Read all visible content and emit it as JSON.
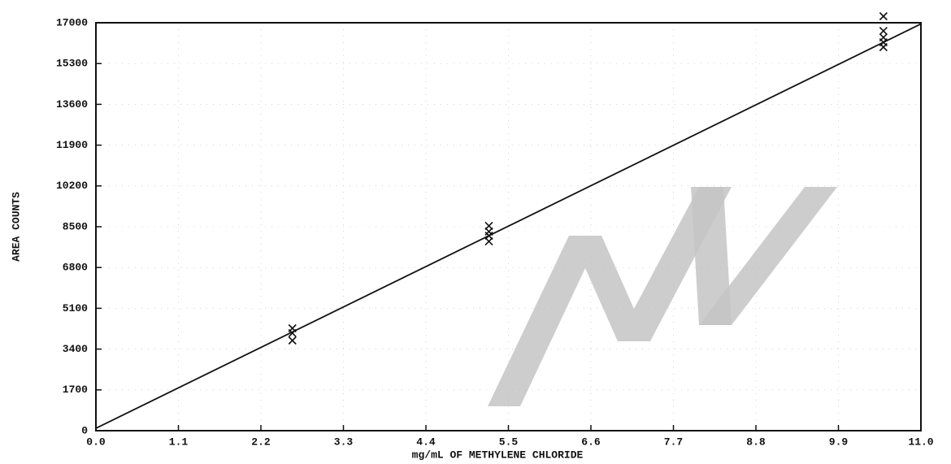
{
  "chart_data": {
    "type": "scatter",
    "x_label": "mg/mL OF METHYLENE CHLORIDE",
    "y_label": "AREA COUNTS",
    "xlim": [
      0,
      11
    ],
    "ylim": [
      0,
      17000
    ],
    "xticks": [
      {
        "value": 0,
        "label": "0.0"
      },
      1.1,
      2.2,
      3.3,
      4.4,
      5.5,
      6.6,
      7.7,
      8.8,
      9.9,
      {
        "value": 11,
        "label": "11.0"
      }
    ],
    "yticks": [
      0,
      1700,
      3400,
      5100,
      6800,
      8500,
      10200,
      11900,
      13600,
      15300,
      17000
    ],
    "grid": true,
    "series": [
      {
        "type": "scatter",
        "marker": "x",
        "color": "#111111",
        "x": [
          2.62,
          2.62,
          2.62,
          5.24,
          5.24,
          5.24,
          5.24,
          10.5,
          10.5,
          10.5,
          10.5,
          10.5
        ],
        "values": [
          4267,
          4064,
          3759,
          8534,
          8297,
          8127,
          7890,
          17271,
          16661,
          16390,
          16187,
          15984
        ]
      },
      {
        "type": "line",
        "color": "#111111",
        "x": [
          0,
          11
        ],
        "values": [
          100,
          16950
        ]
      }
    ]
  }
}
